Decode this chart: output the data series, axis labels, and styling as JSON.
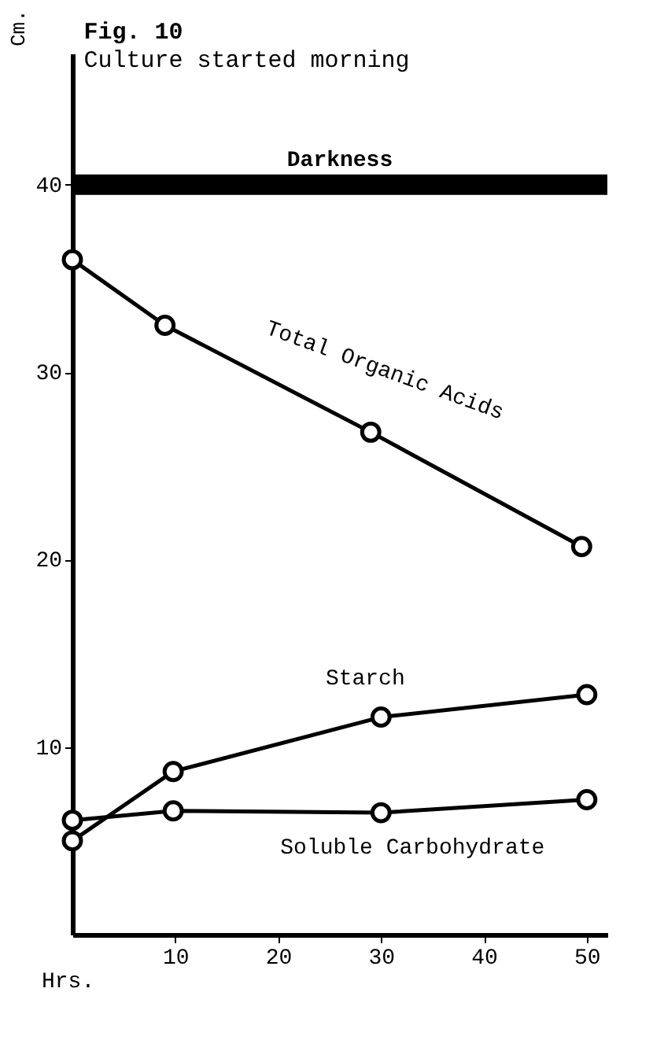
{
  "chart_data": {
    "type": "line",
    "title": "Fig. 10",
    "subtitle": "Culture started morning",
    "xlabel": "Hrs.",
    "ylabel": "Cm.",
    "xlim": [
      0,
      52
    ],
    "xticks": [
      10,
      20,
      30,
      40,
      50
    ],
    "ylim": [
      0,
      47
    ],
    "yticks": [
      10,
      20,
      30,
      40
    ],
    "grid": false,
    "marker": "circle",
    "line_style": "solid",
    "ref_lines": [
      {
        "axis": "y",
        "value": 40,
        "label": "Darkness",
        "color": "#000000"
      }
    ],
    "series": [
      {
        "name": "Total Organic Acids",
        "color": "#000000",
        "x": [
          0,
          9,
          29,
          49.5
        ],
        "values": [
          36,
          32.5,
          26.8,
          20.7
        ]
      },
      {
        "name": "Starch",
        "color": "#000000",
        "x": [
          0,
          9.8,
          30,
          50
        ],
        "values": [
          5.0,
          8.7,
          11.6,
          12.8
        ]
      },
      {
        "name": "Soluble Carbohydrate",
        "color": "#000000",
        "x": [
          0,
          9.8,
          30,
          50
        ],
        "values": [
          6.1,
          6.6,
          6.5,
          7.2
        ]
      }
    ]
  }
}
